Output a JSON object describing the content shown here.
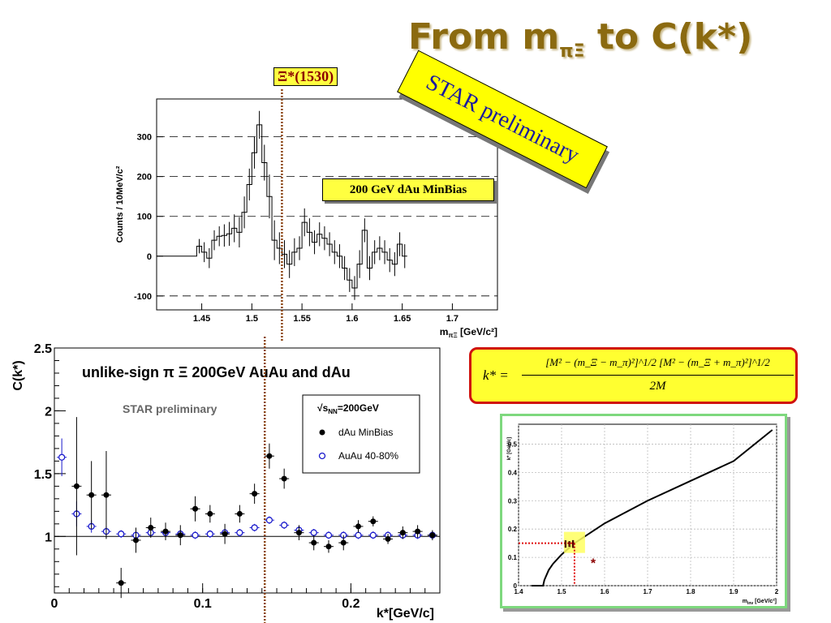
{
  "title": {
    "main": "From m",
    "sub": "πΞ",
    "tail": " to C(k*)"
  },
  "xi_peak_label": "Ξ*(1530)",
  "star_banner": "STAR preliminary",
  "minbias_label": "200 GeV dAu MinBias",
  "formula": {
    "lhs": "k* =",
    "numerator": "[M² − (m_Ξ − m_π)²]^1/2 [M² − (m_Ξ + m_π)²]^1/2",
    "denominator": "2M"
  },
  "colors": {
    "title": "#8b6a10",
    "banner": "#ffff00",
    "banner_text": "#1a1aa0",
    "dotted_line": "#8b4513",
    "dau": "#000000",
    "auau": "#1a1acc",
    "formula_border": "#d01010",
    "kplot_border": "#7ed87e"
  },
  "chart_data": [
    {
      "type": "histogram",
      "xlabel": "m",
      "xlabel_sub": "πΞ",
      "xlabel_unit": " [GeV/c²]",
      "ylabel": "Counts / 10MeV/c²",
      "xlim": [
        1.405,
        1.745
      ],
      "ylim": [
        -135,
        395
      ],
      "xticks": [
        1.45,
        1.5,
        1.55,
        1.6,
        1.65,
        1.7
      ],
      "xtick_labels": [
        "1.45",
        "1.5",
        "1.55",
        "1.6",
        "1.65",
        "1.7"
      ],
      "yticks": [
        -100,
        0,
        100,
        200,
        300
      ],
      "ytick_labels": [
        "-100",
        "0",
        "100",
        "200",
        "300"
      ],
      "bin_width": 0.005,
      "bins": [
        {
          "x": 1.4075,
          "y": 0,
          "err": 0
        },
        {
          "x": 1.4125,
          "y": 0,
          "err": 0
        },
        {
          "x": 1.4175,
          "y": 0,
          "err": 0
        },
        {
          "x": 1.4225,
          "y": 0,
          "err": 0
        },
        {
          "x": 1.4275,
          "y": 0,
          "err": 0
        },
        {
          "x": 1.4325,
          "y": 0,
          "err": 0
        },
        {
          "x": 1.4375,
          "y": 0,
          "err": 0
        },
        {
          "x": 1.4425,
          "y": 0,
          "err": 0
        },
        {
          "x": 1.4475,
          "y": 25,
          "err": 18
        },
        {
          "x": 1.4525,
          "y": 10,
          "err": 25
        },
        {
          "x": 1.4575,
          "y": -5,
          "err": 25
        },
        {
          "x": 1.4625,
          "y": 40,
          "err": 25
        },
        {
          "x": 1.4675,
          "y": 50,
          "err": 25
        },
        {
          "x": 1.4725,
          "y": 52,
          "err": 28
        },
        {
          "x": 1.4775,
          "y": 56,
          "err": 30
        },
        {
          "x": 1.4825,
          "y": 70,
          "err": 35
        },
        {
          "x": 1.4875,
          "y": 60,
          "err": 38
        },
        {
          "x": 1.4925,
          "y": 110,
          "err": 40
        },
        {
          "x": 1.4975,
          "y": 180,
          "err": 40
        },
        {
          "x": 1.5025,
          "y": 260,
          "err": 40
        },
        {
          "x": 1.5075,
          "y": 330,
          "err": 35
        },
        {
          "x": 1.5125,
          "y": 235,
          "err": 45
        },
        {
          "x": 1.5175,
          "y": 150,
          "err": 55
        },
        {
          "x": 1.5225,
          "y": 40,
          "err": 50
        },
        {
          "x": 1.5275,
          "y": 20,
          "err": 40
        },
        {
          "x": 1.5325,
          "y": 5,
          "err": 35
        },
        {
          "x": 1.5375,
          "y": -20,
          "err": 35
        },
        {
          "x": 1.5425,
          "y": 10,
          "err": 35
        },
        {
          "x": 1.5475,
          "y": 20,
          "err": 30
        },
        {
          "x": 1.5525,
          "y": 85,
          "err": 35
        },
        {
          "x": 1.5575,
          "y": 60,
          "err": 35
        },
        {
          "x": 1.5625,
          "y": 35,
          "err": 30
        },
        {
          "x": 1.5675,
          "y": 55,
          "err": 30
        },
        {
          "x": 1.5725,
          "y": 45,
          "err": 30
        },
        {
          "x": 1.5775,
          "y": 30,
          "err": 30
        },
        {
          "x": 1.5825,
          "y": 10,
          "err": 30
        },
        {
          "x": 1.5875,
          "y": 0,
          "err": 30
        },
        {
          "x": 1.5925,
          "y": -30,
          "err": 30
        },
        {
          "x": 1.5975,
          "y": -60,
          "err": 30
        },
        {
          "x": 1.6025,
          "y": -80,
          "err": 30
        },
        {
          "x": 1.6075,
          "y": -20,
          "err": 35
        },
        {
          "x": 1.6125,
          "y": 65,
          "err": 30
        },
        {
          "x": 1.6175,
          "y": -30,
          "err": 30
        },
        {
          "x": 1.6225,
          "y": 10,
          "err": 30
        },
        {
          "x": 1.6275,
          "y": 20,
          "err": 30
        },
        {
          "x": 1.6325,
          "y": 10,
          "err": 30
        },
        {
          "x": 1.6375,
          "y": -10,
          "err": 30
        },
        {
          "x": 1.6425,
          "y": -20,
          "err": 30
        },
        {
          "x": 1.6475,
          "y": 30,
          "err": 30
        },
        {
          "x": 1.6525,
          "y": 0,
          "err": 30
        }
      ],
      "marker_x": 1.53
    },
    {
      "type": "scatter",
      "xlabel": "k*[GeV/c]",
      "ylabel": "C(k*)",
      "xlim": [
        0,
        0.26
      ],
      "ylim": [
        0.55,
        2.5
      ],
      "xticks": [
        0,
        0.1,
        0.2
      ],
      "xtick_labels": [
        "0",
        "0.1",
        "0.2"
      ],
      "yticks": [
        1,
        1.5,
        2,
        2.5
      ],
      "ytick_labels": [
        "1",
        "1.5",
        "2",
        "2.5"
      ],
      "annotation": "unlike-sign π Ξ  200GeV AuAu and dAu",
      "annotation2": "STAR preliminary",
      "legend_header": "√s",
      "legend_header_sub": "NN",
      "legend_header_tail": "=200GeV",
      "legend_position": "top-right",
      "reference_line_y": 1,
      "marker_x": 0.143,
      "series": [
        {
          "name": "dAu  MinBias",
          "marker": "filled-circle",
          "points": [
            {
              "x": 0.015,
              "y": 1.4,
              "err": 0.55
            },
            {
              "x": 0.025,
              "y": 1.33,
              "err": 0.27
            },
            {
              "x": 0.035,
              "y": 1.33,
              "err": 0.35
            },
            {
              "x": 0.045,
              "y": 0.63,
              "err": 0.12
            },
            {
              "x": 0.055,
              "y": 0.97,
              "err": 0.1
            },
            {
              "x": 0.065,
              "y": 1.07,
              "err": 0.08
            },
            {
              "x": 0.075,
              "y": 1.04,
              "err": 0.07
            },
            {
              "x": 0.085,
              "y": 1.01,
              "err": 0.08
            },
            {
              "x": 0.095,
              "y": 1.22,
              "err": 0.1
            },
            {
              "x": 0.105,
              "y": 1.18,
              "err": 0.07
            },
            {
              "x": 0.115,
              "y": 1.02,
              "err": 0.08
            },
            {
              "x": 0.125,
              "y": 1.18,
              "err": 0.07
            },
            {
              "x": 0.135,
              "y": 1.34,
              "err": 0.08
            },
            {
              "x": 0.145,
              "y": 1.64,
              "err": 0.1
            },
            {
              "x": 0.155,
              "y": 1.46,
              "err": 0.08
            },
            {
              "x": 0.165,
              "y": 1.03,
              "err": 0.06
            },
            {
              "x": 0.175,
              "y": 0.95,
              "err": 0.06
            },
            {
              "x": 0.185,
              "y": 0.92,
              "err": 0.05
            },
            {
              "x": 0.195,
              "y": 0.95,
              "err": 0.06
            },
            {
              "x": 0.205,
              "y": 1.08,
              "err": 0.05
            },
            {
              "x": 0.215,
              "y": 1.12,
              "err": 0.04
            },
            {
              "x": 0.225,
              "y": 0.98,
              "err": 0.04
            },
            {
              "x": 0.235,
              "y": 1.03,
              "err": 0.05
            },
            {
              "x": 0.245,
              "y": 1.04,
              "err": 0.05
            },
            {
              "x": 0.255,
              "y": 1.01,
              "err": 0.04
            }
          ]
        },
        {
          "name": "AuAu 40-80%",
          "marker": "open-circle",
          "points": [
            {
              "x": 0.005,
              "y": 1.63,
              "err": 0.15
            },
            {
              "x": 0.015,
              "y": 1.18,
              "err": 0.1
            },
            {
              "x": 0.025,
              "y": 1.08,
              "err": 0.05
            },
            {
              "x": 0.035,
              "y": 1.04,
              "err": 0.04
            },
            {
              "x": 0.045,
              "y": 1.02,
              "err": 0.03
            },
            {
              "x": 0.055,
              "y": 1.01,
              "err": 0.03
            },
            {
              "x": 0.065,
              "y": 1.03,
              "err": 0.03
            },
            {
              "x": 0.075,
              "y": 1.03,
              "err": 0.03
            },
            {
              "x": 0.085,
              "y": 1.02,
              "err": 0.03
            },
            {
              "x": 0.095,
              "y": 1.01,
              "err": 0.03
            },
            {
              "x": 0.105,
              "y": 1.02,
              "err": 0.03
            },
            {
              "x": 0.115,
              "y": 1.03,
              "err": 0.03
            },
            {
              "x": 0.125,
              "y": 1.03,
              "err": 0.03
            },
            {
              "x": 0.135,
              "y": 1.07,
              "err": 0.03
            },
            {
              "x": 0.145,
              "y": 1.13,
              "err": 0.03
            },
            {
              "x": 0.155,
              "y": 1.09,
              "err": 0.03
            },
            {
              "x": 0.165,
              "y": 1.05,
              "err": 0.03
            },
            {
              "x": 0.175,
              "y": 1.03,
              "err": 0.03
            },
            {
              "x": 0.185,
              "y": 1.01,
              "err": 0.03
            },
            {
              "x": 0.195,
              "y": 1.01,
              "err": 0.03
            },
            {
              "x": 0.205,
              "y": 1.01,
              "err": 0.03
            },
            {
              "x": 0.215,
              "y": 1.01,
              "err": 0.03
            },
            {
              "x": 0.225,
              "y": 1.01,
              "err": 0.03
            },
            {
              "x": 0.235,
              "y": 1.01,
              "err": 0.03
            },
            {
              "x": 0.245,
              "y": 1.01,
              "err": 0.03
            },
            {
              "x": 0.255,
              "y": 1.01,
              "err": 0.03
            }
          ]
        }
      ]
    },
    {
      "type": "line",
      "xlabel": "m",
      "xlabel_sub": "inv",
      "xlabel_unit": " [GeV/c²]",
      "ylabel": "k* [GeV/c]",
      "xlim": [
        1.4,
        2.0
      ],
      "ylim": [
        0,
        0.57
      ],
      "xticks": [
        1.4,
        1.5,
        1.6,
        1.7,
        1.8,
        1.9,
        2.0
      ],
      "xtick_labels": [
        "1.4",
        "1.5",
        "1.6",
        "1.7",
        "1.8",
        "1.9",
        "2"
      ],
      "yticks": [
        0,
        0.1,
        0.2,
        0.3,
        0.4,
        0.5
      ],
      "ytick_labels": [
        "0",
        "0.1",
        "0.2",
        "0.3",
        "0.4",
        "0.5"
      ],
      "grid": true,
      "points": [
        {
          "x": 1.43,
          "y": 0
        },
        {
          "x": 1.457,
          "y": 0
        },
        {
          "x": 1.46,
          "y": 0.02
        },
        {
          "x": 1.47,
          "y": 0.055
        },
        {
          "x": 1.48,
          "y": 0.077
        },
        {
          "x": 1.5,
          "y": 0.11
        },
        {
          "x": 1.53,
          "y": 0.15
        },
        {
          "x": 1.55,
          "y": 0.17
        },
        {
          "x": 1.6,
          "y": 0.22
        },
        {
          "x": 1.7,
          "y": 0.3
        },
        {
          "x": 1.8,
          "y": 0.37
        },
        {
          "x": 1.9,
          "y": 0.44
        },
        {
          "x": 1.99,
          "y": 0.55
        }
      ],
      "highlight": {
        "x": 1.53,
        "y": 0.15,
        "label": "Ξ",
        "label2": "*"
      }
    }
  ]
}
